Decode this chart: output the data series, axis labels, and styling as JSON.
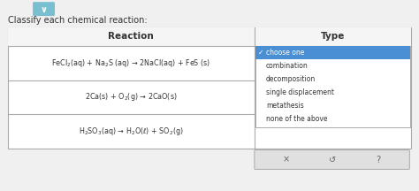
{
  "title": "Classify each chemical reaction:",
  "header_reaction": "Reaction",
  "header_type": "Type",
  "reactions": [
    "FeCl$_2$(aq) + Na$_2$S (aq) → 2NaCl(aq) + FeS (s)",
    "2Ca(s) + O$_2$(g) → 2CaO(s)",
    "H$_2$SO$_3$(aq) → H$_2$O(ℓ) + SO$_2$(g)"
  ],
  "dropdown_items": [
    "choose one",
    "combination",
    "decomposition",
    "single displacement",
    "metathesis",
    "none of the above"
  ],
  "selected_item": "choose one",
  "bg_color": "#f0f0f0",
  "table_bg": "#ffffff",
  "header_bg": "#f5f5f5",
  "dropdown_selected_bg": "#4a8fd4",
  "dropdown_selected_text": "#ffffff",
  "dropdown_item_bg": "#ffffff",
  "border_color": "#aaaaaa",
  "text_color": "#333333",
  "bottom_bar_bg": "#e0e0e0",
  "chevron_bg": "#7abfcf",
  "chevron_color": "#ffffff"
}
